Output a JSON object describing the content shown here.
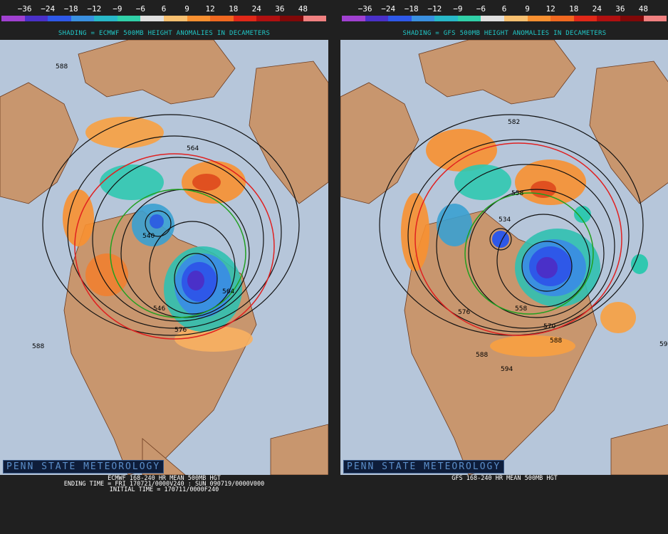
{
  "colorbar": {
    "labels": [
      "−36",
      "−24",
      "−18",
      "−12",
      "−9",
      "−6",
      "6",
      "9",
      "12",
      "18",
      "24",
      "36",
      "48"
    ],
    "colors": [
      "#a040d0",
      "#4a30c8",
      "#2e58e8",
      "#3a90e0",
      "#28b8c8",
      "#30d0a8",
      "#e0e0e0",
      "#f8c070",
      "#f89030",
      "#f06820",
      "#e02818",
      "#b01010",
      "#800808",
      "#f08080"
    ]
  },
  "left": {
    "shading_title": "SHADING = ECMWF 500MB HEIGHT ANOMALIES IN DECAMETERS",
    "brand": "PENN STATE METEOROLOGY",
    "caption_line1": "ECMWF 168-240 HR MEAN 500MB HGT",
    "caption_line2": "ENDING TIME = FRI 170721/0000V240 : SUN 090719/0000V000",
    "caption_line3": "INITIAL TIME = 170711/0000F240",
    "contour_labels": [
      "588",
      "564",
      "540",
      "564",
      "546",
      "576",
      "588"
    ]
  },
  "right": {
    "shading_title": "SHADING = GFS 500MB HEIGHT ANOMALIES IN DECAMETERS",
    "brand": "PENN STATE METEOROLOGY",
    "caption_line1": "GFS 168-240 HR MEAN 500MB HGT",
    "contour_labels": [
      "582",
      "558",
      "534",
      "558",
      "570",
      "576",
      "588",
      "594",
      "588",
      "59"
    ]
  }
}
